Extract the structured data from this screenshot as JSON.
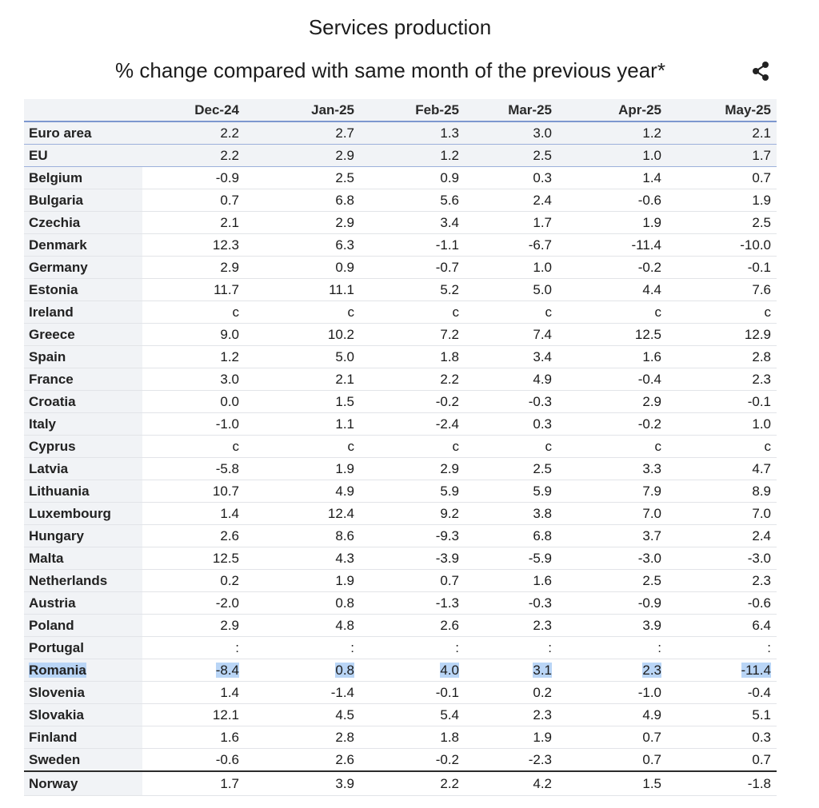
{
  "chart_data": {
    "type": "table",
    "title": "Services production",
    "subtitle": "% change compared with same month of the previous year*",
    "columns": [
      "Dec-24",
      "Jan-25",
      "Feb-25",
      "Mar-25",
      "Apr-25",
      "May-25"
    ],
    "rows": [
      {
        "label": "Euro area",
        "values": [
          "2.2",
          "2.7",
          "1.3",
          "3.0",
          "1.2",
          "2.1"
        ]
      },
      {
        "label": "EU",
        "values": [
          "2.2",
          "2.9",
          "1.2",
          "2.5",
          "1.0",
          "1.7"
        ]
      },
      {
        "label": "Belgium",
        "values": [
          "-0.9",
          "2.5",
          "0.9",
          "0.3",
          "1.4",
          "0.7"
        ]
      },
      {
        "label": "Bulgaria",
        "values": [
          "0.7",
          "6.8",
          "5.6",
          "2.4",
          "-0.6",
          "1.9"
        ]
      },
      {
        "label": "Czechia",
        "values": [
          "2.1",
          "2.9",
          "3.4",
          "1.7",
          "1.9",
          "2.5"
        ]
      },
      {
        "label": "Denmark",
        "values": [
          "12.3",
          "6.3",
          "-1.1",
          "-6.7",
          "-11.4",
          "-10.0"
        ]
      },
      {
        "label": "Germany",
        "values": [
          "2.9",
          "0.9",
          "-0.7",
          "1.0",
          "-0.2",
          "-0.1"
        ]
      },
      {
        "label": "Estonia",
        "values": [
          "11.7",
          "11.1",
          "5.2",
          "5.0",
          "4.4",
          "7.6"
        ]
      },
      {
        "label": "Ireland",
        "values": [
          "c",
          "c",
          "c",
          "c",
          "c",
          "c"
        ]
      },
      {
        "label": "Greece",
        "values": [
          "9.0",
          "10.2",
          "7.2",
          "7.4",
          "12.5",
          "12.9"
        ]
      },
      {
        "label": "Spain",
        "values": [
          "1.2",
          "5.0",
          "1.8",
          "3.4",
          "1.6",
          "2.8"
        ]
      },
      {
        "label": "France",
        "values": [
          "3.0",
          "2.1",
          "2.2",
          "4.9",
          "-0.4",
          "2.3"
        ]
      },
      {
        "label": "Croatia",
        "values": [
          "0.0",
          "1.5",
          "-0.2",
          "-0.3",
          "2.9",
          "-0.1"
        ]
      },
      {
        "label": "Italy",
        "values": [
          "-1.0",
          "1.1",
          "-2.4",
          "0.3",
          "-0.2",
          "1.0"
        ]
      },
      {
        "label": "Cyprus",
        "values": [
          "c",
          "c",
          "c",
          "c",
          "c",
          "c"
        ]
      },
      {
        "label": "Latvia",
        "values": [
          "-5.8",
          "1.9",
          "2.9",
          "2.5",
          "3.3",
          "4.7"
        ]
      },
      {
        "label": "Lithuania",
        "values": [
          "10.7",
          "4.9",
          "5.9",
          "5.9",
          "7.9",
          "8.9"
        ]
      },
      {
        "label": "Luxembourg",
        "values": [
          "1.4",
          "12.4",
          "9.2",
          "3.8",
          "7.0",
          "7.0"
        ]
      },
      {
        "label": "Hungary",
        "values": [
          "2.6",
          "8.6",
          "-9.3",
          "6.8",
          "3.7",
          "2.4"
        ]
      },
      {
        "label": "Malta",
        "values": [
          "12.5",
          "4.3",
          "-3.9",
          "-5.9",
          "-3.0",
          "-3.0"
        ]
      },
      {
        "label": "Netherlands",
        "values": [
          "0.2",
          "1.9",
          "0.7",
          "1.6",
          "2.5",
          "2.3"
        ]
      },
      {
        "label": "Austria",
        "values": [
          "-2.0",
          "0.8",
          "-1.3",
          "-0.3",
          "-0.9",
          "-0.6"
        ]
      },
      {
        "label": "Poland",
        "values": [
          "2.9",
          "4.8",
          "2.6",
          "2.3",
          "3.9",
          "6.4"
        ]
      },
      {
        "label": "Portugal",
        "values": [
          ":",
          ":",
          ":",
          ":",
          ":",
          ":"
        ]
      },
      {
        "label": "Romania",
        "values": [
          "-8.4",
          "0.8",
          "4.0",
          "3.1",
          "2.3",
          "-11.4"
        ],
        "highlighted": true
      },
      {
        "label": "Slovenia",
        "values": [
          "1.4",
          "-1.4",
          "-0.1",
          "0.2",
          "-1.0",
          "-0.4"
        ]
      },
      {
        "label": "Slovakia",
        "values": [
          "12.1",
          "4.5",
          "5.4",
          "2.3",
          "4.9",
          "5.1"
        ]
      },
      {
        "label": "Finland",
        "values": [
          "1.6",
          "2.8",
          "1.8",
          "1.9",
          "0.7",
          "0.3"
        ]
      },
      {
        "label": "Sweden",
        "values": [
          "-0.6",
          "2.6",
          "-0.2",
          "-2.3",
          "0.7",
          "0.7"
        ]
      },
      {
        "label": "Norway",
        "values": [
          "1.7",
          "3.9",
          "2.2",
          "4.2",
          "1.5",
          "-1.8"
        ]
      }
    ]
  },
  "icons": {
    "share": "share-icon"
  },
  "colors": {
    "header_bg": "#f1f3f6",
    "header_rule": "#7d97cf",
    "highlight": "#b9d5f6",
    "separator": "#2b2b2b"
  }
}
